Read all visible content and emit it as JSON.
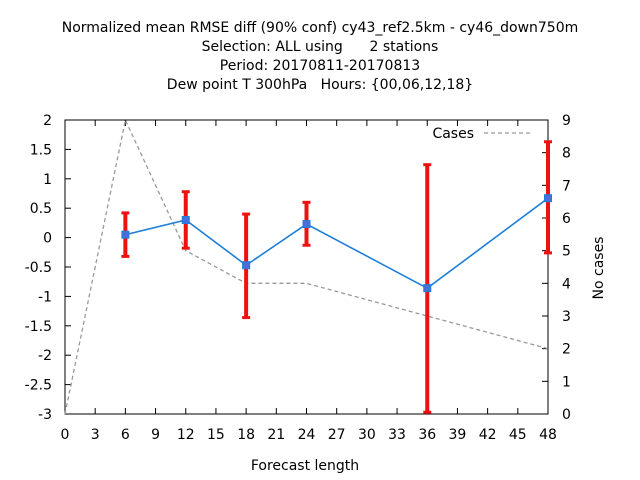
{
  "title_lines": [
    "Normalized mean RMSE diff (90% conf) cy43_ref2.5km - cy46_down750m",
    "Selection: ALL using      2 stations",
    "Period: 20170811-20170813",
    "Dew point T 300hPa   Hours: {00,06,12,18}"
  ],
  "colors": {
    "diff_line": "#1e7fd8",
    "diff_marker": "#4a6fd8",
    "error_bar": "#ee1111",
    "cases_line": "#999999",
    "axis": "#000000"
  },
  "chart_data": {
    "type": "line",
    "xlabel": "Forecast length",
    "ylabel": "",
    "y2label": "No cases",
    "xlim": [
      0,
      48
    ],
    "ylim": [
      -3,
      2
    ],
    "y2lim": [
      0,
      9
    ],
    "x_ticks": [
      0,
      3,
      6,
      9,
      12,
      15,
      18,
      21,
      24,
      27,
      30,
      33,
      36,
      39,
      42,
      45,
      48
    ],
    "y_ticks": [
      2,
      1.5,
      1,
      0.5,
      0,
      -0.5,
      -1,
      -1.5,
      -2,
      -2.5,
      -3
    ],
    "y2_ticks": [
      0,
      1,
      2,
      3,
      4,
      5,
      6,
      7,
      8,
      9
    ],
    "grid": false,
    "legend": {
      "position": "top-right",
      "label": "Cases"
    },
    "diff_series": {
      "x": [
        6,
        12,
        18,
        24,
        36,
        48
      ],
      "y": [
        0.05,
        0.3,
        -0.47,
        0.23,
        -0.86,
        0.67
      ],
      "err_low": [
        -0.32,
        -0.18,
        -1.36,
        -0.13,
        -2.97,
        -0.26
      ],
      "err_high": [
        0.42,
        0.78,
        0.4,
        0.6,
        1.24,
        1.63
      ]
    },
    "cases_series": {
      "name": "Cases",
      "x": [
        0,
        6,
        12,
        18,
        24,
        36,
        48
      ],
      "y": [
        0,
        9,
        5,
        4,
        4,
        3,
        2
      ]
    }
  }
}
